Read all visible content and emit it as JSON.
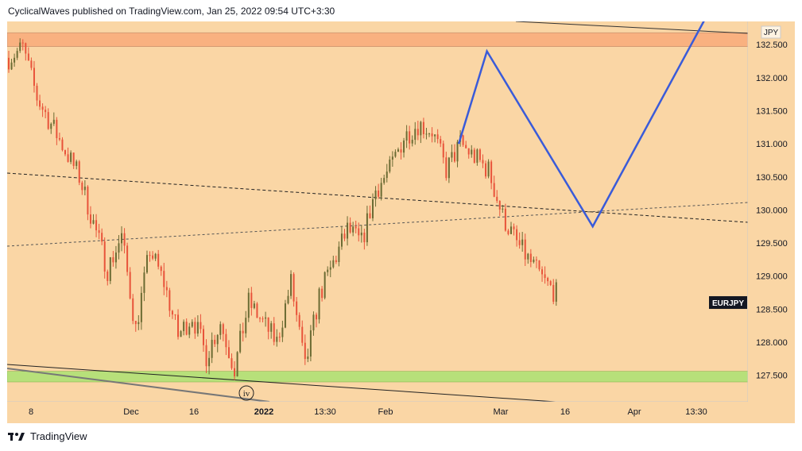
{
  "header": {
    "attribution": "CyclicalWaves published on TradingView.com, Jan 25, 2022 09:54 UTC+3:30"
  },
  "footer": {
    "brand": "TradingView",
    "logo_icon": "tradingview-logo-icon"
  },
  "chart_data": {
    "type": "candlestick",
    "symbol": "EURJPY",
    "currency": "JPY",
    "y_range": [
      127.1,
      132.85
    ],
    "y_ticks": [
      "132.500",
      "132.000",
      "131.500",
      "131.000",
      "130.500",
      "130.000",
      "129.500",
      "129.000",
      "128.500",
      "128.000",
      "127.500"
    ],
    "x_ticks": [
      "8",
      "Dec",
      "16",
      "2022",
      "13:30",
      "Feb",
      "Mar",
      "16",
      "Apr",
      "13:30"
    ],
    "last_price_label": "EURJPY",
    "colors": {
      "background": "#fad6a5",
      "bull": "#6b6b33",
      "bear": "#e8533a",
      "resistance_zone": "#f9b180",
      "support_zone": "#b7e07a",
      "projection": "#3a5bd9"
    },
    "zones": [
      {
        "name": "resistance",
        "from": 132.47,
        "to": 132.68
      },
      {
        "name": "support",
        "from": 127.4,
        "to": 127.56
      }
    ],
    "annotations": [
      {
        "label": "iv"
      }
    ],
    "price_path": [
      [
        0,
        132.3
      ],
      [
        4,
        132.45
      ],
      [
        8,
        131.7
      ],
      [
        12,
        131.3
      ],
      [
        16,
        130.9
      ],
      [
        20,
        130.5
      ],
      [
        24,
        129.8
      ],
      [
        28,
        129.1
      ],
      [
        32,
        129.6
      ],
      [
        36,
        128.2
      ],
      [
        40,
        129.4
      ],
      [
        44,
        128.9
      ],
      [
        48,
        128.1
      ],
      [
        52,
        128.4
      ],
      [
        56,
        127.8
      ],
      [
        60,
        128.3
      ],
      [
        64,
        127.6
      ],
      [
        68,
        128.6
      ],
      [
        72,
        128.3
      ],
      [
        76,
        128.0
      ],
      [
        80,
        128.9
      ],
      [
        84,
        127.6
      ],
      [
        88,
        128.7
      ],
      [
        92,
        129.2
      ],
      [
        96,
        129.7
      ],
      [
        100,
        129.5
      ],
      [
        104,
        130.3
      ],
      [
        108,
        130.6
      ],
      [
        112,
        131.1
      ],
      [
        116,
        131.3
      ],
      [
        120,
        131.2
      ],
      [
        124,
        130.6
      ],
      [
        128,
        131.0
      ],
      [
        132,
        130.8
      ],
      [
        136,
        130.6
      ],
      [
        140,
        129.9
      ],
      [
        144,
        129.5
      ],
      [
        148,
        129.2
      ],
      [
        152,
        128.9
      ],
      [
        156,
        128.7
      ]
    ],
    "projection": [
      [
        128,
        131.0
      ],
      [
        136,
        132.4
      ],
      [
        166,
        129.75
      ],
      [
        200,
        133.1
      ]
    ]
  }
}
